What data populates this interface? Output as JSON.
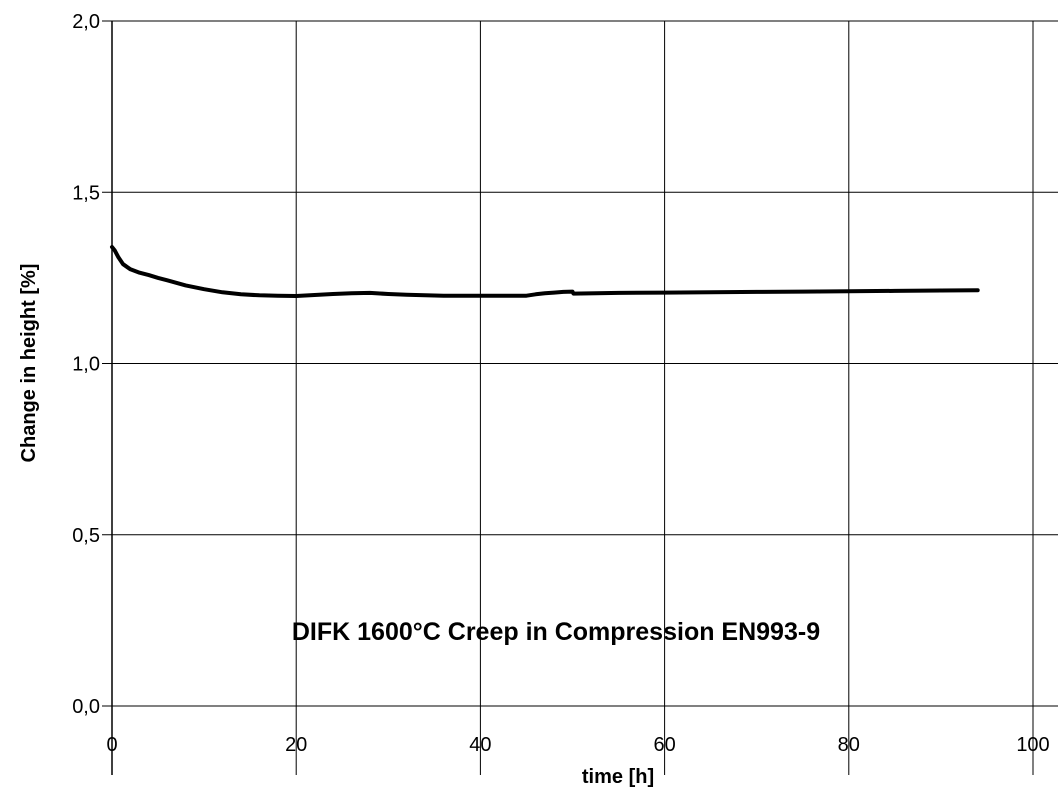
{
  "chart_data": {
    "type": "line",
    "title": "",
    "annotation": "DIFK 1600°C Creep in Compression EN993-9",
    "xlabel": "time [h]",
    "ylabel": "Change in height [%]",
    "xlim": [
      0,
      100
    ],
    "ylim": [
      0.0,
      2.0
    ],
    "x_ticks": [
      0,
      20,
      40,
      60,
      80,
      100
    ],
    "y_ticks": [
      0.0,
      0.5,
      1.0,
      1.5,
      2.0
    ],
    "x_tick_labels": [
      "0",
      "20",
      "40",
      "60",
      "80",
      "100"
    ],
    "y_tick_labels": [
      "0,0",
      "0,5",
      "1,0",
      "1,5",
      "2,0"
    ],
    "grid": true,
    "legend": "none",
    "series": [
      {
        "color": "#000000",
        "x": [
          0,
          0.3,
          0.7,
          1.2,
          2,
          3,
          4,
          5,
          6,
          8,
          10,
          12,
          14,
          16,
          18,
          20,
          22,
          24,
          26,
          28,
          30,
          32,
          34,
          36,
          38,
          40,
          42,
          44,
          45,
          46,
          47,
          48,
          49,
          50,
          50.1,
          55,
          60,
          65,
          70,
          75,
          80,
          85,
          90,
          94
        ],
        "y": [
          1.34,
          1.33,
          1.31,
          1.29,
          1.275,
          1.265,
          1.258,
          1.25,
          1.243,
          1.228,
          1.217,
          1.208,
          1.202,
          1.199,
          1.198,
          1.197,
          1.2,
          1.203,
          1.205,
          1.206,
          1.203,
          1.201,
          1.199,
          1.198,
          1.198,
          1.198,
          1.198,
          1.198,
          1.198,
          1.202,
          1.205,
          1.207,
          1.209,
          1.21,
          1.204,
          1.206,
          1.207,
          1.208,
          1.209,
          1.21,
          1.211,
          1.212,
          1.213,
          1.214
        ]
      }
    ]
  }
}
